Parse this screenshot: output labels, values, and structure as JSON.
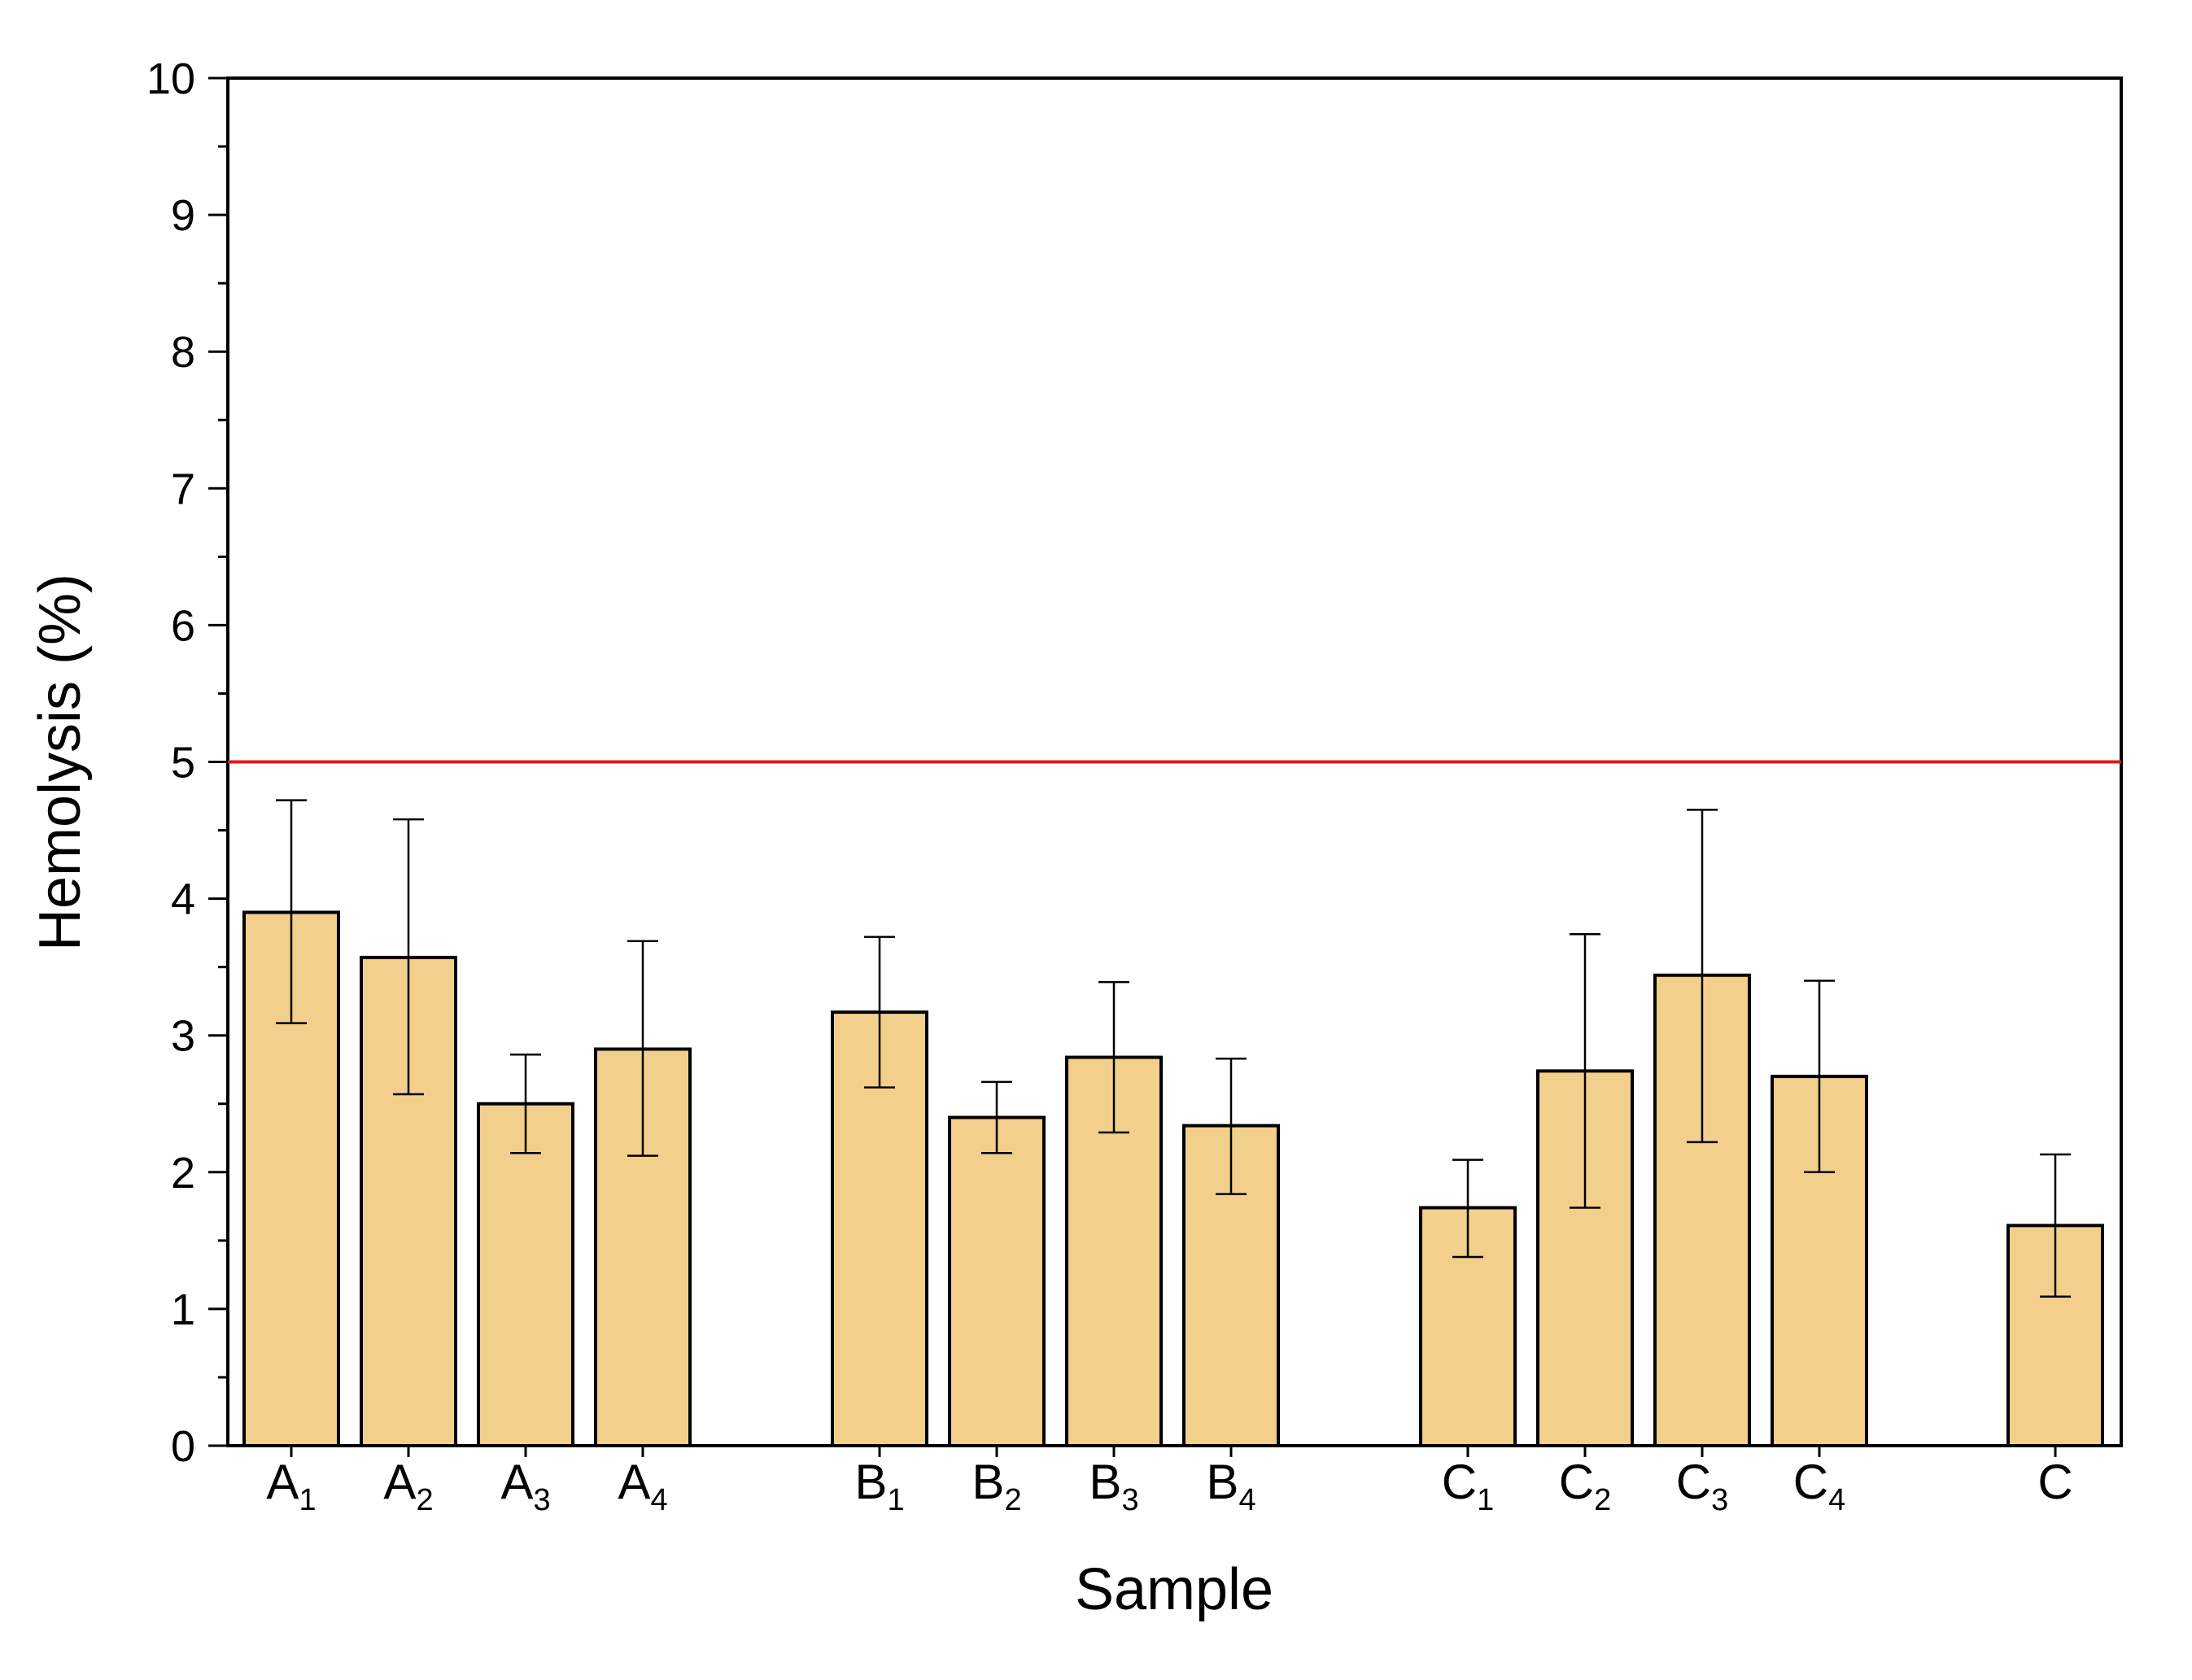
{
  "chart_data": {
    "type": "bar",
    "xlabel": "Sample",
    "ylabel": "Hemolysis (%)",
    "ylim": [
      0,
      10
    ],
    "yticks": [
      "0",
      "1",
      "2",
      "3",
      "4",
      "5",
      "6",
      "7",
      "8",
      "9",
      "10"
    ],
    "grid": false,
    "categories": [
      {
        "base": "A",
        "sub": "1"
      },
      {
        "base": "A",
        "sub": "2"
      },
      {
        "base": "A",
        "sub": "3"
      },
      {
        "base": "A",
        "sub": "4"
      },
      {
        "base": "B",
        "sub": "1"
      },
      {
        "base": "B",
        "sub": "2"
      },
      {
        "base": "B",
        "sub": "3"
      },
      {
        "base": "B",
        "sub": "4"
      },
      {
        "base": "C",
        "sub": "1"
      },
      {
        "base": "C",
        "sub": "2"
      },
      {
        "base": "C",
        "sub": "3"
      },
      {
        "base": "C",
        "sub": "4"
      },
      {
        "base": "C",
        "sub": ""
      }
    ],
    "values": [
      3.9,
      3.57,
      2.5,
      2.9,
      3.17,
      2.4,
      2.84,
      2.34,
      1.74,
      2.74,
      3.44,
      2.7,
      1.61
    ],
    "error_low": [
      3.09,
      2.57,
      2.14,
      2.12,
      2.62,
      2.14,
      2.29,
      1.84,
      1.38,
      1.74,
      2.22,
      2.0,
      1.09
    ],
    "error_high": [
      4.72,
      4.58,
      2.86,
      3.69,
      3.72,
      2.66,
      3.39,
      2.83,
      2.09,
      3.74,
      4.65,
      3.4,
      2.13
    ],
    "reference_line": {
      "y": 5,
      "color": "#e0191c"
    },
    "bar_color": "#f3cf8c",
    "bar_edge_color": "#000000"
  }
}
